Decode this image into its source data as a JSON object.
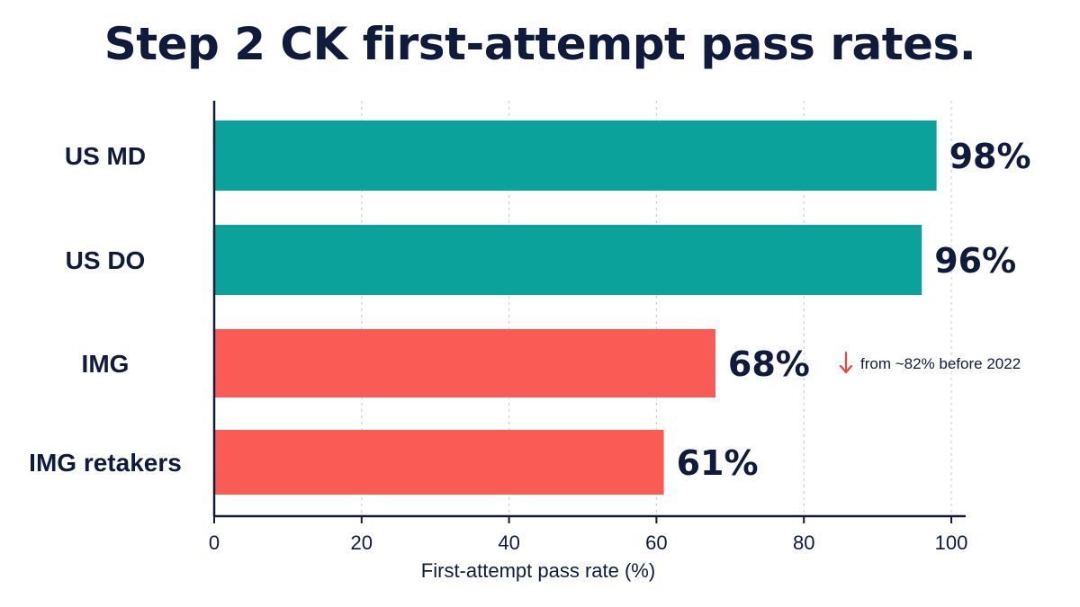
{
  "title": "Step 2 CK first-attempt pass rates.",
  "colors": {
    "us": "#0aa29b",
    "img": "#fa5c55",
    "text": "#0f1b3d",
    "grid": "#cfd3da",
    "arrow": "#e8463f"
  },
  "chart_data": {
    "type": "bar",
    "orientation": "horizontal",
    "title": "Step 2 CK first-attempt pass rates.",
    "xlabel": "First-attempt pass rate (%)",
    "ylabel": "",
    "xlim": [
      0,
      100
    ],
    "xticks": [
      "0",
      "20",
      "40",
      "60",
      "80",
      "100"
    ],
    "grid": "vertical dashed",
    "categories": [
      "US MD",
      "US DO",
      "IMG",
      "IMG retakers"
    ],
    "values": [
      98,
      96,
      68,
      61
    ],
    "value_labels": [
      "98%",
      "96%",
      "68%",
      "61%"
    ],
    "bar_colors": [
      "#0aa29b",
      "#0aa29b",
      "#fa5c55",
      "#fa5c55"
    ],
    "annotations": [
      {
        "category": "IMG",
        "text": "from ~82% before 2022",
        "icon": "down-arrow-icon"
      }
    ]
  }
}
